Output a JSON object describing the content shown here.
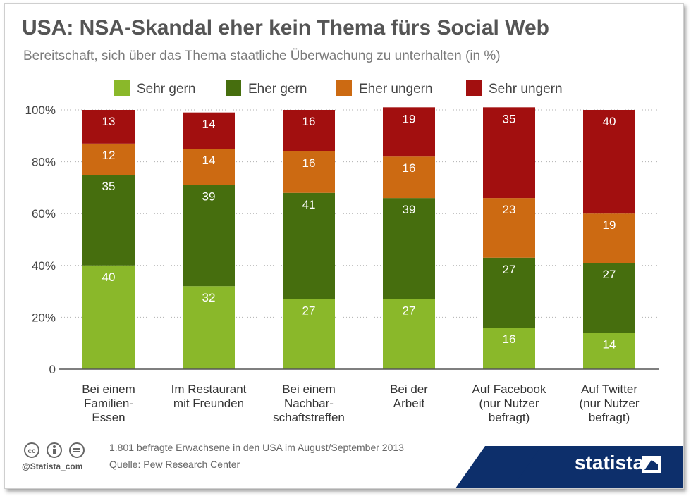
{
  "header": {
    "title": "USA: NSA-Skandal eher kein Thema fürs Social Web",
    "subtitle": "Bereitschaft, sich über das Thema staatliche Überwachung zu unterhalten (in %)"
  },
  "chart_data": {
    "type": "bar",
    "stacked": true,
    "categories": [
      [
        "Bei einem",
        "Familien-",
        "Essen"
      ],
      [
        "Im Restaurant",
        "mit Freunden"
      ],
      [
        "Bei einem",
        "Nachbar-",
        "schaftstreffen"
      ],
      [
        "Bei der",
        "Arbeit"
      ],
      [
        "Auf Facebook",
        "(nur Nutzer",
        "befragt)"
      ],
      [
        "Auf Twitter",
        "(nur Nutzer",
        "befragt)"
      ]
    ],
    "series": [
      {
        "name": "Sehr gern",
        "color": "#8ab82a",
        "values": [
          40,
          32,
          27,
          27,
          16,
          14
        ]
      },
      {
        "name": "Eher gern",
        "color": "#466e0e",
        "values": [
          35,
          39,
          41,
          39,
          27,
          27
        ]
      },
      {
        "name": "Eher ungern",
        "color": "#cc6a12",
        "values": [
          12,
          14,
          16,
          16,
          23,
          19
        ]
      },
      {
        "name": "Sehr ungern",
        "color": "#a20f0f",
        "values": [
          13,
          14,
          16,
          19,
          35,
          40
        ]
      }
    ],
    "yticks": [
      "0",
      "20%",
      "40%",
      "60%",
      "80%",
      "100%"
    ],
    "ylim": [
      0,
      100
    ],
    "grid": true,
    "legend": "top"
  },
  "footer": {
    "note": "1.801 befragte Erwachsene in den USA im August/September 2013",
    "source": "Quelle: Pew Research Center",
    "credit": "@Statista_com",
    "brand": "statista"
  }
}
